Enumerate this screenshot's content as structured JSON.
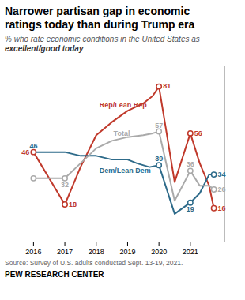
{
  "chart_data": {
    "type": "line",
    "title": "Narrower partisan gap in economic\nratings today than during Trump era",
    "subtitle": [
      "% who rate economic conditions in the United States as",
      "excellent/good today"
    ],
    "source": "Source: Survey of U.S. adults conducted Sept. 13-19, 2021.",
    "footer": "PEW RESEARCH CENTER",
    "marker": "circle",
    "tick_labels": "x",
    "xlim": [
      2015.6,
      2022.1
    ],
    "ylim": [
      -2,
      92
    ],
    "xticks": [
      2016,
      2017,
      2018,
      2019,
      2020,
      2021
    ],
    "yticks": [],
    "series": [
      {
        "name": "Rep/Lean Rep",
        "color": "#c0392b",
        "name_at": [
          2018.1,
          71
        ],
        "x": [
          2016.0,
          2017.0,
          2017.5,
          2018.0,
          2018.5,
          2019.0,
          2019.5,
          2019.8,
          2020.0,
          2020.5,
          2021.0,
          2021.3,
          2021.6,
          2021.75
        ],
        "values": [
          46,
          18,
          38,
          55,
          62,
          68,
          72,
          76,
          81,
          30,
          56,
          40,
          28,
          16
        ],
        "markers": [
          true,
          true,
          false,
          false,
          false,
          false,
          false,
          false,
          true,
          false,
          true,
          false,
          false,
          true
        ],
        "data_labels": [
          true,
          true,
          false,
          false,
          false,
          false,
          false,
          false,
          true,
          false,
          true,
          false,
          false,
          true
        ]
      },
      {
        "name": "Dem/Lean Dem",
        "color": "#2e6b8a",
        "name_at": [
          2018.1,
          36
        ],
        "x": [
          2016.0,
          2017.0,
          2017.5,
          2018.0,
          2018.5,
          2019.0,
          2019.3,
          2019.7,
          2020.0,
          2020.5,
          2021.0,
          2021.3,
          2021.6,
          2021.75
        ],
        "values": [
          46,
          46,
          44,
          44,
          42,
          42,
          40,
          38,
          39,
          13,
          19,
          24,
          34,
          34
        ],
        "markers": [
          false,
          false,
          false,
          false,
          false,
          false,
          false,
          false,
          true,
          false,
          true,
          false,
          false,
          true
        ],
        "data_labels": [
          true,
          false,
          false,
          false,
          false,
          false,
          false,
          false,
          true,
          false,
          true,
          false,
          false,
          true
        ]
      },
      {
        "name": "Total",
        "color": "#aaaaaa",
        "name_at": [
          2018.55,
          56
        ],
        "x": [
          2016.0,
          2017.0,
          2017.5,
          2018.0,
          2018.5,
          2019.0,
          2019.5,
          2019.8,
          2020.0,
          2020.5,
          2021.0,
          2021.3,
          2021.6,
          2021.75
        ],
        "values": [
          32,
          32,
          40,
          48,
          52,
          54,
          55,
          56,
          57,
          20,
          36,
          28,
          28,
          26
        ],
        "markers": [
          true,
          true,
          false,
          false,
          false,
          false,
          false,
          false,
          true,
          false,
          true,
          false,
          false,
          true
        ],
        "data_labels": [
          false,
          true,
          false,
          false,
          false,
          false,
          false,
          false,
          true,
          false,
          true,
          false,
          false,
          true
        ]
      }
    ]
  }
}
